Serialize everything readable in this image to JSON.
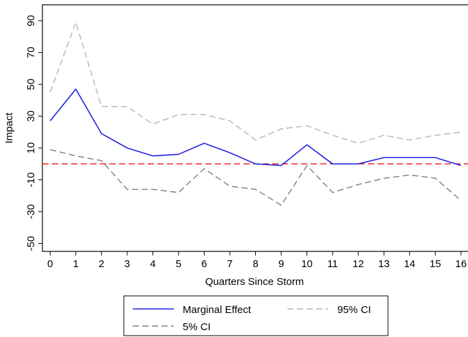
{
  "chart_data": {
    "type": "line",
    "xlabel": "Quarters Since Storm",
    "ylabel": "Impact",
    "xlim": [
      -0.3,
      16.3
    ],
    "ylim": [
      -55,
      100
    ],
    "xticks": [
      0,
      1,
      2,
      3,
      4,
      5,
      6,
      7,
      8,
      9,
      10,
      11,
      12,
      13,
      14,
      15,
      16
    ],
    "yticks": [
      -50,
      -30,
      -10,
      10,
      30,
      50,
      70,
      90
    ],
    "grid": false,
    "reference_line": {
      "y": 0,
      "color": "#e8262a",
      "style": "dashed"
    },
    "x": [
      0,
      1,
      2,
      3,
      4,
      5,
      6,
      7,
      8,
      9,
      10,
      11,
      12,
      13,
      14,
      15,
      16
    ],
    "series": [
      {
        "name": "Marginal Effect",
        "color": "#1f1fe0",
        "dash": "solid",
        "values": [
          27,
          47,
          19,
          10,
          5,
          6,
          13,
          7,
          0,
          -1,
          12,
          0,
          0,
          4,
          4,
          4,
          -1
        ]
      },
      {
        "name": "95% CI",
        "color": "#b3b3b3",
        "dash": "dashed",
        "values": [
          45,
          89,
          36,
          36,
          25,
          31,
          31,
          27,
          15,
          22,
          24,
          18,
          13,
          18,
          15,
          18,
          20
        ]
      },
      {
        "name": "5% CI",
        "color": "#7a7a7a",
        "dash": "dashed",
        "values": [
          9,
          5,
          2,
          -16,
          -16,
          -18,
          -3,
          -14,
          -16,
          -26,
          -1,
          -18,
          -13,
          -9,
          -7,
          -9,
          -23
        ]
      }
    ],
    "legend": {
      "position": "bottom",
      "entries": [
        "Marginal Effect",
        "95% CI",
        "5% CI"
      ]
    }
  }
}
